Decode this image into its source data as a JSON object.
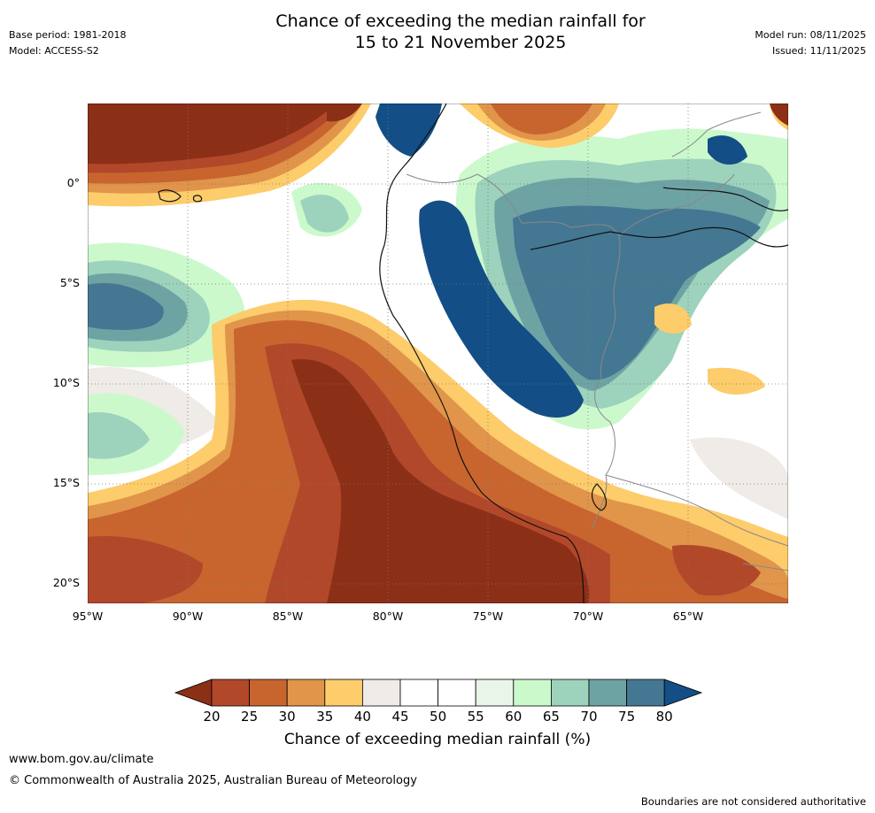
{
  "header": {
    "base_period": "Base period: 1981-2018",
    "model": "Model: ACCESS-S2",
    "title_line1": "Chance of exceeding the median rainfall for",
    "title_line2": "15 to 21 November 2025",
    "model_run": "Model run: 08/11/2025",
    "issued": "Issued: 11/11/2025"
  },
  "map": {
    "lat_labels": [
      "0°",
      "5°S",
      "10°S",
      "15°S",
      "20°S"
    ],
    "lon_labels": [
      "95°W",
      "90°W",
      "85°W",
      "80°W",
      "75°W",
      "70°W",
      "65°W"
    ],
    "region": "Ecuador, Peru, western Brazil, western Bolivia, northern Chile and the adjacent Pacific Ocean"
  },
  "colorbar": {
    "labels": [
      "20",
      "25",
      "30",
      "35",
      "40",
      "45",
      "50",
      "55",
      "60",
      "65",
      "70",
      "75",
      "80"
    ],
    "colors": [
      "#8c2f17",
      "#b2482a",
      "#c8652f",
      "#e0954a",
      "#fdcc6b",
      "#efebe6",
      "#ffffff",
      "#ffffff",
      "#eaf5ea",
      "#cbf9cc",
      "#9dd2bc",
      "#6ea3a4",
      "#447792",
      "#144e86"
    ],
    "title": "Chance of exceeding median rainfall (%)"
  },
  "footer": {
    "website": "www.bom.gov.au/climate",
    "copyright": "© Commonwealth of Australia 2025, Australian Bureau of Meteorology",
    "disclaimer": "Boundaries are not considered authoritative"
  }
}
